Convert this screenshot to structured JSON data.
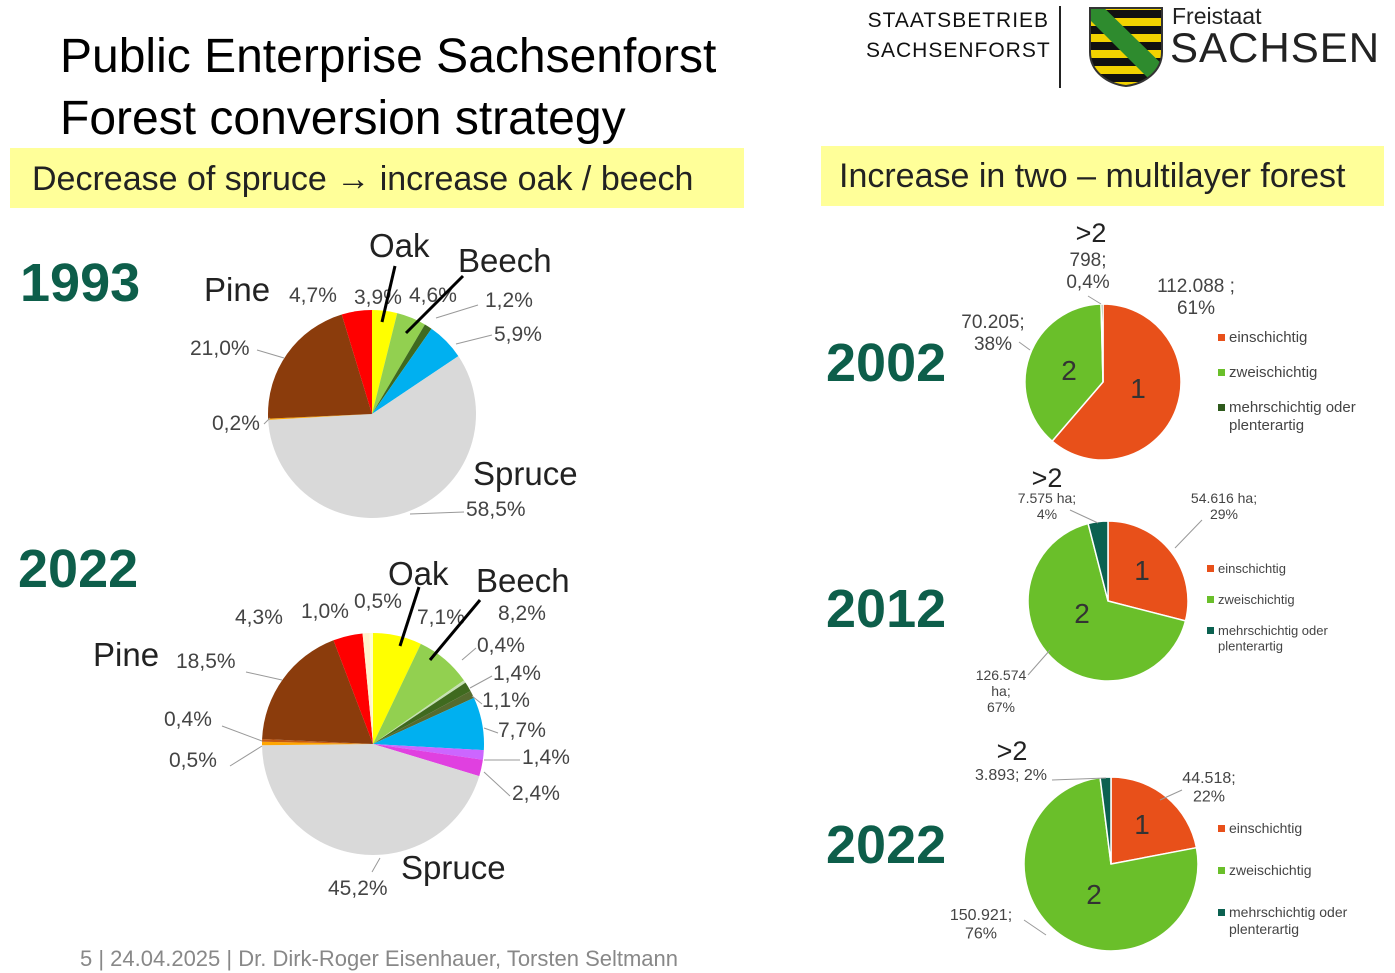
{
  "header": {
    "title_line1": "Public Enterprise Sachsenforst",
    "title_line2": "Forest conversion strategy",
    "org_line1": "STAATSBETRIEB",
    "org_line2": "SACHSENFORST",
    "state_small": "Freistaat",
    "state_big": "SACHSEN"
  },
  "banners": {
    "left": "Decrease of spruce → increase oak / beech",
    "right": "Increase in two – multilayer forest"
  },
  "years": {
    "left_top": "1993",
    "left_bottom": "2022",
    "right_1": "2002",
    "right_2": "2012",
    "right_3": "2022"
  },
  "footer": "5  |  24.04.2025  |  Dr. Dirk-Roger Eisenhauer, Torsten Seltmann",
  "colors": {
    "spruce": "#d9d9d9",
    "pine": "#8b3c0c",
    "red": "#ff0000",
    "oak": "#ffff00",
    "beech": "#92d050",
    "darkgreen": "#3f6a1f",
    "blue": "#00b0f0",
    "orange": "#ffa500",
    "cream": "#fff2cc",
    "olive": "#556b2f",
    "violet": "#cc66ff",
    "magenta": "#e040e0",
    "layer1": "#e8501a",
    "layer2": "#6abf2a",
    "layer_multi_2002": "#2e5a1c",
    "layer_multi": "#0b6150",
    "year": "#0d5e4a",
    "banner": "#ffff99"
  },
  "chart_data": [
    {
      "type": "pie",
      "year": "1993",
      "species_labels": [
        "Oak",
        "Beech",
        "Pine",
        "Spruce"
      ],
      "slices": [
        {
          "label": "3,9%",
          "value": 3.9,
          "color": "#ffff00"
        },
        {
          "label": "4,6%",
          "value": 4.6,
          "color": "#92d050"
        },
        {
          "label": "1,2%",
          "value": 1.2,
          "color": "#3f6a1f"
        },
        {
          "label": "5,9%",
          "value": 5.9,
          "color": "#00b0f0"
        },
        {
          "label": "58,5%",
          "value": 58.5,
          "color": "#d9d9d9"
        },
        {
          "label": "0,2%",
          "value": 0.2,
          "color": "#ffa500"
        },
        {
          "label": "21,0%",
          "value": 21.0,
          "color": "#8b3c0c"
        },
        {
          "label": "4,7%",
          "value": 4.7,
          "color": "#ff0000"
        }
      ]
    },
    {
      "type": "pie",
      "year": "2022",
      "species_labels": [
        "Oak",
        "Beech",
        "Pine",
        "Spruce"
      ],
      "slices": [
        {
          "label": "7,1%",
          "value": 7.1,
          "color": "#ffff00"
        },
        {
          "label": "8,2%",
          "value": 8.2,
          "color": "#92d050"
        },
        {
          "label": "0,4%",
          "value": 0.4,
          "color": "#c6e0b4"
        },
        {
          "label": "1,4%",
          "value": 1.4,
          "color": "#3f6a1f"
        },
        {
          "label": "1,1%",
          "value": 1.1,
          "color": "#556b2f"
        },
        {
          "label": "7,7%",
          "value": 7.7,
          "color": "#00b0f0"
        },
        {
          "label": "1,4%",
          "value": 1.4,
          "color": "#cc66ff"
        },
        {
          "label": "2,4%",
          "value": 2.4,
          "color": "#e040e0"
        },
        {
          "label": "45,2%",
          "value": 45.2,
          "color": "#d9d9d9"
        },
        {
          "label": "0,5%",
          "value": 0.5,
          "color": "#ffa500"
        },
        {
          "label": "0,4%",
          "value": 0.4,
          "color": "#c55a11"
        },
        {
          "label": "18,5%",
          "value": 18.5,
          "color": "#8b3c0c"
        },
        {
          "label": "4,3%",
          "value": 4.3,
          "color": "#ff0000"
        },
        {
          "label": "1,0%",
          "value": 1.0,
          "color": "#fff2cc"
        },
        {
          "label": "0,5%",
          "value": 0.5,
          "color": "#ffffcc"
        }
      ]
    },
    {
      "type": "pie",
      "year": "2002",
      "legend": [
        "einschichtig",
        "zweischichtig",
        "mehrschichtig oder plenterartig"
      ],
      "slices": [
        {
          "inside": "1",
          "label": "112.088 ; 61%",
          "value": 61.3,
          "color": "#e8501a"
        },
        {
          "inside": "2",
          "label": "70.205; 38%",
          "value": 38.3,
          "color": "#6abf2a"
        },
        {
          "inside": "",
          "label": "798; 0,4%",
          "header": ">2",
          "value": 0.4,
          "color": "#2e5a1c"
        }
      ]
    },
    {
      "type": "pie",
      "year": "2012",
      "legend": [
        "einschichtig",
        "zweischichtig",
        "mehrschichtig oder plenterartig"
      ],
      "slices": [
        {
          "inside": "1",
          "label": "54.616 ha; 29%",
          "value": 29,
          "color": "#e8501a"
        },
        {
          "inside": "2",
          "label": "126.574 ha; 67%",
          "value": 67,
          "color": "#6abf2a"
        },
        {
          "inside": "",
          "label": "7.575 ha; 4%",
          "header": ">2",
          "value": 4,
          "color": "#0b6150"
        }
      ]
    },
    {
      "type": "pie",
      "year": "2022",
      "legend": [
        "einschichtig",
        "zweischichtig",
        "mehrschichtig oder plenterartig"
      ],
      "slices": [
        {
          "inside": "1",
          "label": "44.518; 22%",
          "value": 22,
          "color": "#e8501a"
        },
        {
          "inside": "2",
          "label": "150.921; 76%",
          "value": 76,
          "color": "#6abf2a"
        },
        {
          "inside": "",
          "label": "3.893; 2%",
          "header": ">2",
          "value": 2,
          "color": "#0b6150"
        }
      ]
    }
  ]
}
